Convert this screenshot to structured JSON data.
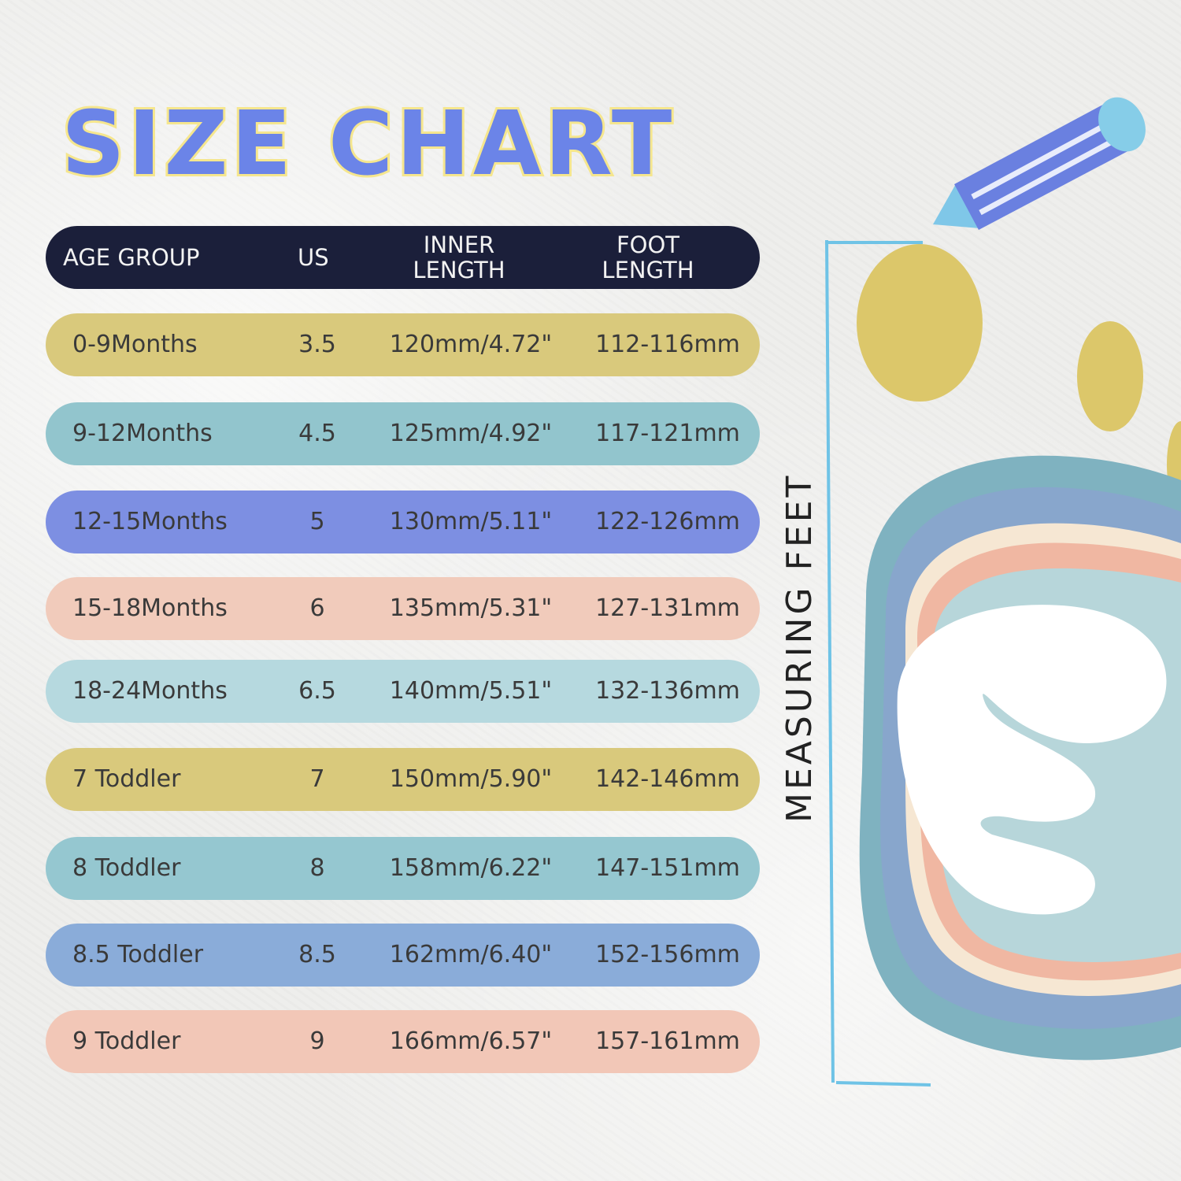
{
  "title": "SIZE CHART",
  "side_label": "MEASURING FEET",
  "headers": {
    "age_group": "AGE GROUP",
    "us": "US",
    "inner_length": "INNER LENGTH",
    "foot_length": "FOOT LENGTH"
  },
  "rows": [
    {
      "age": "0-9Months",
      "us": "3.5",
      "inner": "120mm/4.72\"",
      "foot": "112-116mm",
      "color": "#d9c97c"
    },
    {
      "age": "9-12Months",
      "us": "4.5",
      "inner": "125mm/4.92\"",
      "foot": "117-121mm",
      "color": "#92c5cd"
    },
    {
      "age": "12-15Months",
      "us": "5",
      "inner": "130mm/5.11\"",
      "foot": "122-126mm",
      "color": "#7d8fe2"
    },
    {
      "age": "15-18Months",
      "us": "6",
      "inner": "135mm/5.31\"",
      "foot": "127-131mm",
      "color": "#f1cbbb"
    },
    {
      "age": "18-24Months",
      "us": "6.5",
      "inner": "140mm/5.51\"",
      "foot": "132-136mm",
      "color": "#b6d9df"
    },
    {
      "age": "7 Toddler",
      "us": "7",
      "inner": "150mm/5.90\"",
      "foot": "142-146mm",
      "color": "#d9c97c"
    },
    {
      "age": "8 Toddler",
      "us": "8",
      "inner": "158mm/6.22\"",
      "foot": "147-151mm",
      "color": "#95c7d0"
    },
    {
      "age": "8.5 Toddler",
      "us": "8.5",
      "inner": "162mm/6.40\"",
      "foot": "152-156mm",
      "color": "#8aacd9"
    },
    {
      "age": "9 Toddler",
      "us": "9",
      "inner": "166mm/6.57\"",
      "foot": "157-161mm",
      "color": "#f2c7b7"
    }
  ],
  "colors": {
    "header_bg": "#1b1f3a",
    "title": "#6b84e8",
    "title_outline": "#f5e68e"
  }
}
